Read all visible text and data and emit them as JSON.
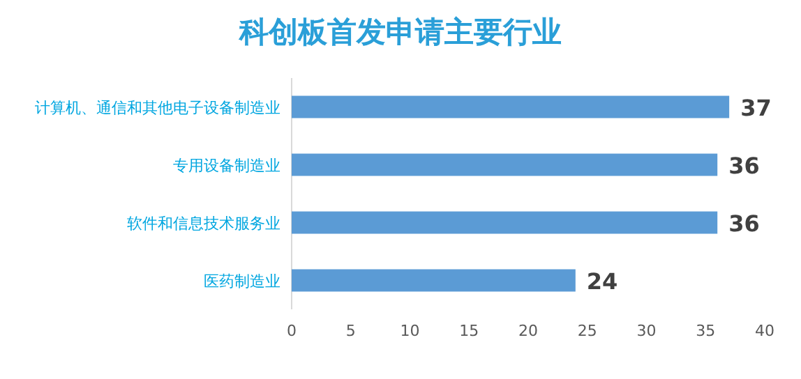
{
  "chart_data": {
    "type": "bar",
    "orientation": "horizontal",
    "title": "科创板首发申请主要行业",
    "categories": [
      "计算机、通信和其他电子设备制造业",
      "专用设备制造业",
      "软件和信息技术服务业",
      "医药制造业"
    ],
    "values": [
      37,
      36,
      36,
      24
    ],
    "color": "#5b9bd5",
    "data_labels": true,
    "xlim": [
      0,
      40
    ],
    "xticks": [
      0,
      5,
      10,
      15,
      20,
      25,
      30,
      35,
      40
    ]
  }
}
